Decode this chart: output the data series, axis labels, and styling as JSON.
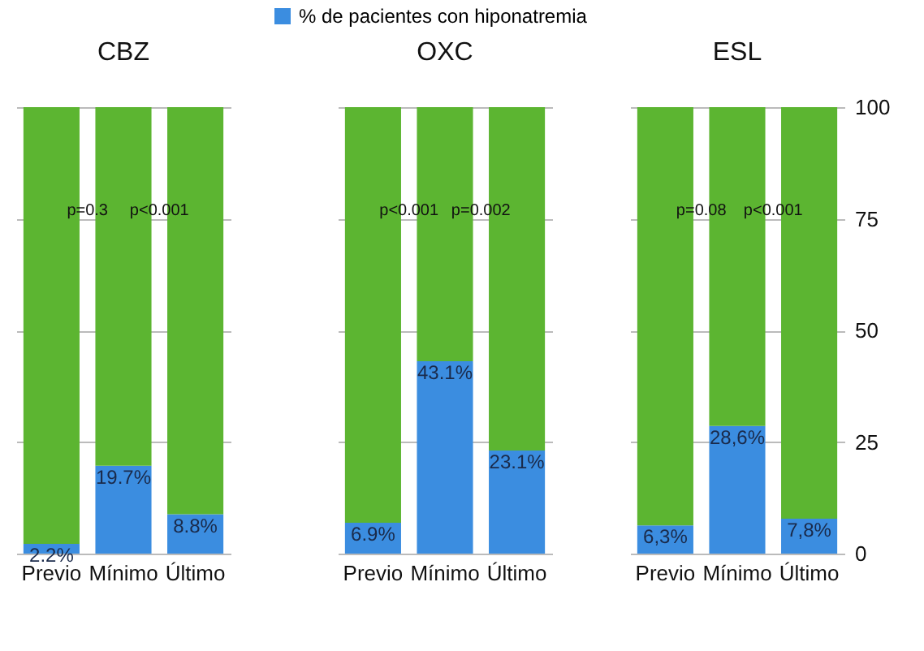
{
  "chart_data": [
    {
      "type": "bar",
      "title": "CBZ",
      "categories": [
        "Previo",
        "Mínimo",
        "Último"
      ],
      "stacked": true,
      "ylim": [
        0,
        100
      ],
      "yticks": [
        0,
        25,
        50,
        75,
        100
      ],
      "grid": "y",
      "tick_labels": "x",
      "series": [
        {
          "color": "#3b8de0",
          "values": [
            2.2,
            19.7,
            8.8
          ],
          "value_labels": [
            "2.2%",
            "19.7%",
            "8.8%"
          ]
        },
        {
          "color": "#5cb531",
          "values": [
            97.8,
            80.3,
            91.2
          ]
        }
      ],
      "annotations": [
        "p=0.3",
        "p<0.001"
      ]
    },
    {
      "type": "bar",
      "title": "OXC",
      "categories": [
        "Previo",
        "Mínimo",
        "Último"
      ],
      "stacked": true,
      "ylim": [
        0,
        100
      ],
      "yticks": [
        0,
        25,
        50,
        75,
        100
      ],
      "grid": "y",
      "tick_labels": "x",
      "legend": "top",
      "series": [
        {
          "name": "% de pacientes con hiponatremia",
          "color": "#3b8de0",
          "values": [
            6.9,
            43.1,
            23.1
          ],
          "value_labels": [
            "6.9%",
            "43.1%",
            "23.1%"
          ]
        },
        {
          "color": "#5cb531",
          "values": [
            93.1,
            56.9,
            76.9
          ]
        }
      ],
      "annotations": [
        "p<0.001",
        "p=0.002"
      ]
    },
    {
      "type": "bar",
      "title": "ESL",
      "categories": [
        "Previo",
        "Mínimo",
        "Último"
      ],
      "stacked": true,
      "ylim": [
        0,
        100
      ],
      "yticks": [
        0,
        25,
        50,
        75,
        100
      ],
      "grid": "y",
      "series": [
        {
          "color": "#3b8de0",
          "values": [
            6.3,
            28.6,
            7.8
          ],
          "value_labels": [
            "6,3%",
            "28,6%",
            "7,8%"
          ]
        },
        {
          "color": "#5cb531",
          "values": [
            93.7,
            71.4,
            92.2
          ]
        }
      ],
      "annotations": [
        "p=0.08",
        "p<0.001"
      ]
    }
  ]
}
